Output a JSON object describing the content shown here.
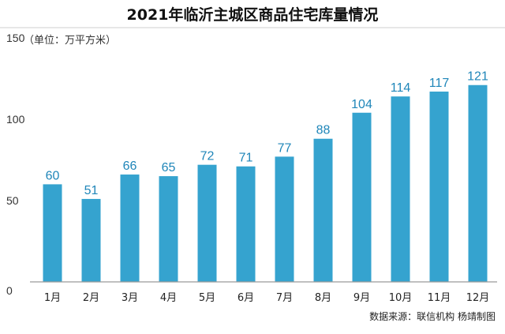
{
  "chart_data": {
    "type": "bar",
    "title": "2021年临沂主城区商品住宅库量情况",
    "unit_note": "（单位：万平方米）",
    "categories": [
      "1月",
      "2月",
      "3月",
      "4月",
      "5月",
      "6月",
      "7月",
      "8月",
      "9月",
      "10月",
      "11月",
      "12月"
    ],
    "values": [
      60,
      51,
      66,
      65,
      72,
      71,
      77,
      88,
      104,
      114,
      117,
      121
    ],
    "ylim": [
      0,
      150
    ],
    "yticks": [
      "0",
      "50",
      "100",
      "150"
    ],
    "bar_color": "#35a3cf",
    "label_color": "#1f86b9",
    "grid": false,
    "legend": "none",
    "source": "数据来源：联信机构  杨靖制图"
  }
}
